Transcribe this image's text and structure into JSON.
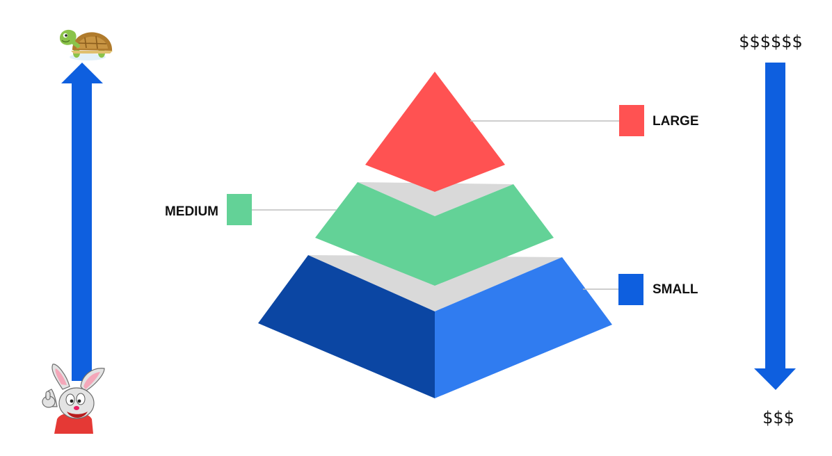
{
  "diagram": {
    "tiers": [
      {
        "label": "LARGE",
        "color": "#FF5252"
      },
      {
        "label": "MEDIUM",
        "color": "#63D297"
      },
      {
        "label": "SMALL",
        "color": "#0E5FDF"
      }
    ],
    "pyramid_colors": {
      "top": "#FF5252",
      "middle": "#63D297",
      "bottom_left": "#0B46A3",
      "bottom_right": "#307CF0",
      "separator": "#D9D9D9",
      "leader_line": "#BDBDBD"
    },
    "arrow_color": "#0E5FDF",
    "left_axis": {
      "direction": "up",
      "top_icon": "turtle-icon",
      "bottom_icon": "rabbit-icon"
    },
    "right_axis": {
      "direction": "down",
      "top_label": "$$$$$$",
      "bottom_label": "$$$"
    }
  }
}
